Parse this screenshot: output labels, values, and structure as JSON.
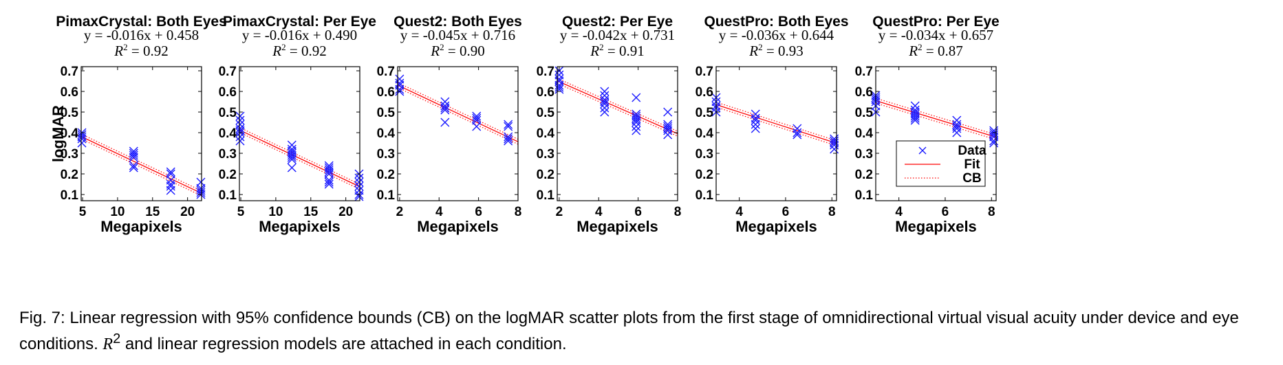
{
  "caption": {
    "lead": "Fig. 7: Linear regression with 95% confidence bounds (CB) on the logMAR scatter plots from the first stage of omnidirectional virtual visual acuity under device and eye conditions.",
    "r2_symbol": "R",
    "r2_exponent": "2",
    "tail": "and linear regression models are attached in each condition."
  },
  "colors": {
    "data": "#1a1aff",
    "fit": "#ff0000",
    "cb": "#ff0000",
    "axis": "#000000"
  },
  "legend": {
    "items": [
      "Data",
      "Fit",
      "CB"
    ],
    "placement": "lower-right of last panel"
  },
  "chart_data": [
    {
      "type": "scatter",
      "title": "PimaxCrystal: Both Eyes",
      "equation": "y = -0.016x + 0.458",
      "r2": "= 0.92",
      "xlabel": "Megapixels",
      "ylabel": "logMAR",
      "xlim": [
        4.8,
        22
      ],
      "ylim": [
        0.07,
        0.72
      ],
      "xticks": [
        "5",
        "10",
        "15",
        "20"
      ],
      "yticks": [
        "0.1",
        "0.2",
        "0.3",
        "0.4",
        "0.5",
        "0.6",
        "0.7"
      ],
      "fit": {
        "slope": -0.016,
        "intercept": 0.458
      },
      "ci_halfwidth": 0.012,
      "points": [
        {
          "x": 4.9,
          "y": 0.4
        },
        {
          "x": 4.9,
          "y": 0.39
        },
        {
          "x": 4.9,
          "y": 0.38
        },
        {
          "x": 4.9,
          "y": 0.37
        },
        {
          "x": 4.9,
          "y": 0.35
        },
        {
          "x": 12.3,
          "y": 0.31
        },
        {
          "x": 12.3,
          "y": 0.3
        },
        {
          "x": 12.3,
          "y": 0.29
        },
        {
          "x": 12.3,
          "y": 0.28
        },
        {
          "x": 12.3,
          "y": 0.24
        },
        {
          "x": 12.3,
          "y": 0.23
        },
        {
          "x": 17.6,
          "y": 0.21
        },
        {
          "x": 17.6,
          "y": 0.2
        },
        {
          "x": 17.6,
          "y": 0.17
        },
        {
          "x": 17.6,
          "y": 0.15
        },
        {
          "x": 17.6,
          "y": 0.14
        },
        {
          "x": 17.6,
          "y": 0.12
        },
        {
          "x": 21.9,
          "y": 0.16
        },
        {
          "x": 21.9,
          "y": 0.13
        },
        {
          "x": 21.9,
          "y": 0.12
        },
        {
          "x": 21.9,
          "y": 0.11
        },
        {
          "x": 21.9,
          "y": 0.1
        }
      ]
    },
    {
      "type": "scatter",
      "title": "PimaxCrystal: Per Eye",
      "equation": "y = -0.016x + 0.490",
      "r2": "= 0.92",
      "xlabel": "Megapixels",
      "ylabel": "",
      "xlim": [
        4.8,
        22
      ],
      "ylim": [
        0.07,
        0.72
      ],
      "xticks": [
        "5",
        "10",
        "15",
        "20"
      ],
      "yticks": [
        "0.1",
        "0.2",
        "0.3",
        "0.4",
        "0.5",
        "0.6",
        "0.7"
      ],
      "fit": {
        "slope": -0.016,
        "intercept": 0.49
      },
      "ci_halfwidth": 0.012,
      "points": [
        {
          "x": 4.9,
          "y": 0.48
        },
        {
          "x": 4.9,
          "y": 0.46
        },
        {
          "x": 4.9,
          "y": 0.44
        },
        {
          "x": 4.9,
          "y": 0.42
        },
        {
          "x": 4.9,
          "y": 0.41
        },
        {
          "x": 4.9,
          "y": 0.4
        },
        {
          "x": 4.9,
          "y": 0.38
        },
        {
          "x": 4.9,
          "y": 0.36
        },
        {
          "x": 12.3,
          "y": 0.34
        },
        {
          "x": 12.3,
          "y": 0.32
        },
        {
          "x": 12.3,
          "y": 0.31
        },
        {
          "x": 12.3,
          "y": 0.3
        },
        {
          "x": 12.3,
          "y": 0.29
        },
        {
          "x": 12.3,
          "y": 0.28
        },
        {
          "x": 12.3,
          "y": 0.27
        },
        {
          "x": 12.3,
          "y": 0.23
        },
        {
          "x": 17.6,
          "y": 0.24
        },
        {
          "x": 17.6,
          "y": 0.23
        },
        {
          "x": 17.6,
          "y": 0.22
        },
        {
          "x": 17.6,
          "y": 0.21
        },
        {
          "x": 17.6,
          "y": 0.2
        },
        {
          "x": 17.6,
          "y": 0.17
        },
        {
          "x": 17.6,
          "y": 0.16
        },
        {
          "x": 17.6,
          "y": 0.15
        },
        {
          "x": 21.9,
          "y": 0.2
        },
        {
          "x": 21.9,
          "y": 0.18
        },
        {
          "x": 21.9,
          "y": 0.16
        },
        {
          "x": 21.9,
          "y": 0.14
        },
        {
          "x": 21.9,
          "y": 0.12
        },
        {
          "x": 21.9,
          "y": 0.1
        },
        {
          "x": 21.9,
          "y": 0.09
        }
      ]
    },
    {
      "type": "scatter",
      "title": "Quest2: Both Eyes",
      "equation": "y = -0.045x + 0.716",
      "r2": "= 0.90",
      "xlabel": "Megapixels",
      "ylabel": "",
      "xlim": [
        1.9,
        8
      ],
      "ylim": [
        0.07,
        0.72
      ],
      "xticks": [
        "2",
        "4",
        "6",
        "8"
      ],
      "yticks": [
        "0.1",
        "0.2",
        "0.3",
        "0.4",
        "0.5",
        "0.6",
        "0.7"
      ],
      "fit": {
        "slope": -0.045,
        "intercept": 0.716
      },
      "ci_halfwidth": 0.012,
      "points": [
        {
          "x": 2.0,
          "y": 0.66
        },
        {
          "x": 2.0,
          "y": 0.64
        },
        {
          "x": 2.0,
          "y": 0.63
        },
        {
          "x": 2.0,
          "y": 0.61
        },
        {
          "x": 2.0,
          "y": 0.6
        },
        {
          "x": 4.3,
          "y": 0.55
        },
        {
          "x": 4.3,
          "y": 0.53
        },
        {
          "x": 4.3,
          "y": 0.52
        },
        {
          "x": 4.3,
          "y": 0.51
        },
        {
          "x": 4.3,
          "y": 0.45
        },
        {
          "x": 5.9,
          "y": 0.48
        },
        {
          "x": 5.9,
          "y": 0.47
        },
        {
          "x": 5.9,
          "y": 0.46
        },
        {
          "x": 5.9,
          "y": 0.43
        },
        {
          "x": 7.5,
          "y": 0.44
        },
        {
          "x": 7.5,
          "y": 0.43
        },
        {
          "x": 7.5,
          "y": 0.38
        },
        {
          "x": 7.5,
          "y": 0.37
        },
        {
          "x": 7.5,
          "y": 0.36
        }
      ]
    },
    {
      "type": "scatter",
      "title": "Quest2: Per Eye",
      "equation": "y = -0.042x + 0.731",
      "r2": "= 0.91",
      "xlabel": "Megapixels",
      "ylabel": "",
      "xlim": [
        1.9,
        8
      ],
      "ylim": [
        0.07,
        0.72
      ],
      "xticks": [
        "2",
        "4",
        "6",
        "8"
      ],
      "yticks": [
        "0.1",
        "0.2",
        "0.3",
        "0.4",
        "0.5",
        "0.6",
        "0.7"
      ],
      "fit": {
        "slope": -0.042,
        "intercept": 0.731
      },
      "ci_halfwidth": 0.012,
      "points": [
        {
          "x": 2.0,
          "y": 0.7
        },
        {
          "x": 2.0,
          "y": 0.68
        },
        {
          "x": 2.0,
          "y": 0.66
        },
        {
          "x": 2.0,
          "y": 0.65
        },
        {
          "x": 2.0,
          "y": 0.63
        },
        {
          "x": 2.0,
          "y": 0.62
        },
        {
          "x": 2.0,
          "y": 0.61
        },
        {
          "x": 4.3,
          "y": 0.6
        },
        {
          "x": 4.3,
          "y": 0.58
        },
        {
          "x": 4.3,
          "y": 0.56
        },
        {
          "x": 4.3,
          "y": 0.55
        },
        {
          "x": 4.3,
          "y": 0.54
        },
        {
          "x": 4.3,
          "y": 0.52
        },
        {
          "x": 4.3,
          "y": 0.5
        },
        {
          "x": 5.9,
          "y": 0.57
        },
        {
          "x": 5.9,
          "y": 0.49
        },
        {
          "x": 5.9,
          "y": 0.48
        },
        {
          "x": 5.9,
          "y": 0.47
        },
        {
          "x": 5.9,
          "y": 0.46
        },
        {
          "x": 5.9,
          "y": 0.45
        },
        {
          "x": 5.9,
          "y": 0.43
        },
        {
          "x": 5.9,
          "y": 0.41
        },
        {
          "x": 7.5,
          "y": 0.5
        },
        {
          "x": 7.5,
          "y": 0.44
        },
        {
          "x": 7.5,
          "y": 0.43
        },
        {
          "x": 7.5,
          "y": 0.42
        },
        {
          "x": 7.5,
          "y": 0.41
        },
        {
          "x": 7.5,
          "y": 0.39
        }
      ]
    },
    {
      "type": "scatter",
      "title": "QuestPro: Both Eyes",
      "equation": "y = -0.036x + 0.644",
      "r2": "= 0.93",
      "xlabel": "Megapixels",
      "ylabel": "",
      "xlim": [
        3.0,
        8.2
      ],
      "ylim": [
        0.07,
        0.72
      ],
      "xticks": [
        "4",
        "6",
        "8"
      ],
      "yticks": [
        "0.1",
        "0.2",
        "0.3",
        "0.4",
        "0.5",
        "0.6",
        "0.7"
      ],
      "fit": {
        "slope": -0.036,
        "intercept": 0.644
      },
      "ci_halfwidth": 0.012,
      "points": [
        {
          "x": 3.0,
          "y": 0.57
        },
        {
          "x": 3.0,
          "y": 0.55
        },
        {
          "x": 3.0,
          "y": 0.53
        },
        {
          "x": 3.0,
          "y": 0.52
        },
        {
          "x": 3.0,
          "y": 0.5
        },
        {
          "x": 4.7,
          "y": 0.49
        },
        {
          "x": 4.7,
          "y": 0.47
        },
        {
          "x": 4.7,
          "y": 0.46
        },
        {
          "x": 4.7,
          "y": 0.44
        },
        {
          "x": 4.7,
          "y": 0.42
        },
        {
          "x": 6.5,
          "y": 0.42
        },
        {
          "x": 6.5,
          "y": 0.4
        },
        {
          "x": 6.5,
          "y": 0.39
        },
        {
          "x": 8.1,
          "y": 0.37
        },
        {
          "x": 8.1,
          "y": 0.36
        },
        {
          "x": 8.1,
          "y": 0.35
        },
        {
          "x": 8.1,
          "y": 0.34
        },
        {
          "x": 8.1,
          "y": 0.32
        }
      ]
    },
    {
      "type": "scatter",
      "title": "QuestPro: Per Eye",
      "equation": "y = -0.034x + 0.657",
      "r2": "= 0.87",
      "xlabel": "Megapixels",
      "ylabel": "",
      "xlim": [
        3.0,
        8.2
      ],
      "ylim": [
        0.07,
        0.72
      ],
      "xticks": [
        "4",
        "6",
        "8"
      ],
      "yticks": [
        "0.1",
        "0.2",
        "0.3",
        "0.4",
        "0.5",
        "0.6",
        "0.7"
      ],
      "fit": {
        "slope": -0.034,
        "intercept": 0.657
      },
      "ci_halfwidth": 0.012,
      "points": [
        {
          "x": 3.0,
          "y": 0.58
        },
        {
          "x": 3.0,
          "y": 0.57
        },
        {
          "x": 3.0,
          "y": 0.56
        },
        {
          "x": 3.0,
          "y": 0.55
        },
        {
          "x": 3.0,
          "y": 0.53
        },
        {
          "x": 3.0,
          "y": 0.5
        },
        {
          "x": 4.7,
          "y": 0.53
        },
        {
          "x": 4.7,
          "y": 0.51
        },
        {
          "x": 4.7,
          "y": 0.5
        },
        {
          "x": 4.7,
          "y": 0.49
        },
        {
          "x": 4.7,
          "y": 0.48
        },
        {
          "x": 4.7,
          "y": 0.47
        },
        {
          "x": 4.7,
          "y": 0.46
        },
        {
          "x": 6.5,
          "y": 0.46
        },
        {
          "x": 6.5,
          "y": 0.44
        },
        {
          "x": 6.5,
          "y": 0.43
        },
        {
          "x": 6.5,
          "y": 0.42
        },
        {
          "x": 6.5,
          "y": 0.4
        },
        {
          "x": 8.1,
          "y": 0.41
        },
        {
          "x": 8.1,
          "y": 0.4
        },
        {
          "x": 8.1,
          "y": 0.39
        },
        {
          "x": 8.1,
          "y": 0.38
        },
        {
          "x": 8.1,
          "y": 0.36
        },
        {
          "x": 8.1,
          "y": 0.35
        }
      ]
    }
  ]
}
